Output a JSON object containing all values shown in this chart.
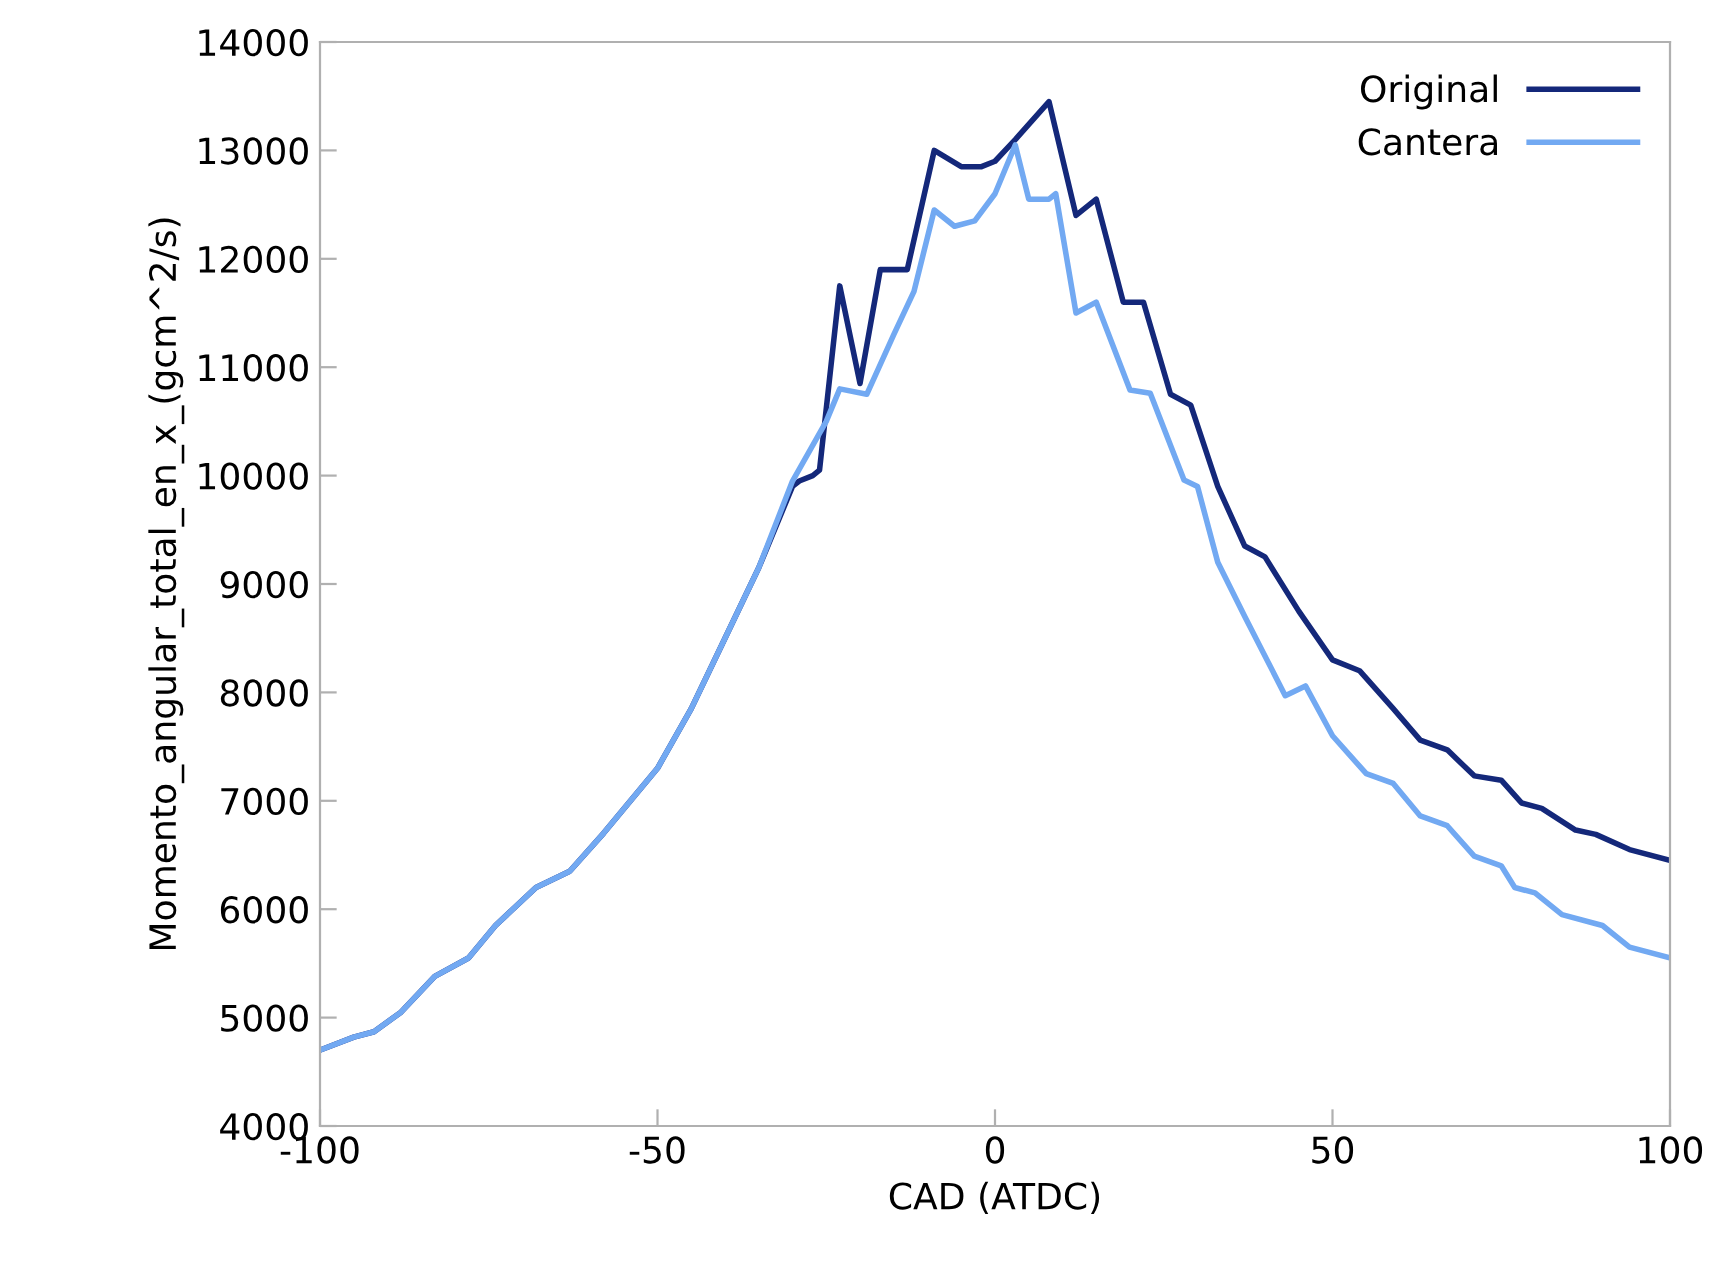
{
  "chart_data": {
    "type": "line",
    "xlabel": "CAD (ATDC)",
    "ylabel": "Momento_angular_total_en_x_(gcm^2/s)",
    "xlim": [
      -100,
      100
    ],
    "xticks": [
      -100,
      -50,
      0,
      50,
      100
    ],
    "ylim": [
      4000,
      14000
    ],
    "yticks": [
      4000,
      5000,
      6000,
      7000,
      8000,
      9000,
      10000,
      11000,
      12000,
      13000,
      14000
    ],
    "grid": false,
    "legend": "top right",
    "marker": "none",
    "line_style": "solid",
    "series": [
      {
        "name": "Original",
        "color": "#14287a",
        "x": [
          -100,
          -95,
          -92,
          -88,
          -83,
          -78,
          -74,
          -68,
          -63,
          -58,
          -50,
          -45,
          -40,
          -35,
          -30,
          -29,
          -27,
          -26,
          -23,
          -20,
          -17,
          -13,
          -9,
          -5,
          -2,
          0,
          3,
          8,
          12,
          15,
          19,
          22,
          26,
          29,
          33,
          37,
          40,
          45,
          50,
          54,
          59,
          63,
          67,
          71,
          75,
          78,
          81,
          86,
          89,
          94,
          100
        ],
        "values": [
          4700,
          4820,
          4870,
          5050,
          5380,
          5550,
          5850,
          6200,
          6350,
          6700,
          7300,
          7850,
          8500,
          9150,
          9900,
          9950,
          10000,
          10050,
          11750,
          10850,
          11900,
          11900,
          13000,
          12850,
          12850,
          12900,
          13100,
          13450,
          12400,
          12550,
          11600,
          11600,
          10750,
          10650,
          9900,
          9350,
          9250,
          8750,
          8300,
          8200,
          7850,
          7560,
          7470,
          7230,
          7190,
          6980,
          6930,
          6730,
          6690,
          6550,
          6450
        ]
      },
      {
        "name": "Cantera",
        "color": "#72a9f2",
        "x": [
          -100,
          -95,
          -92,
          -88,
          -83,
          -78,
          -74,
          -68,
          -63,
          -58,
          -50,
          -45,
          -40,
          -35,
          -30,
          -25,
          -23,
          -19,
          -15,
          -12,
          -9,
          -6,
          -3,
          0,
          3,
          5,
          8,
          9,
          12,
          15,
          20,
          23,
          28,
          30,
          33,
          37,
          43,
          46,
          50,
          55,
          59,
          63,
          67,
          71,
          75,
          77,
          80,
          84,
          90,
          94,
          100
        ],
        "values": [
          4700,
          4820,
          4870,
          5050,
          5380,
          5550,
          5850,
          6200,
          6350,
          6700,
          7300,
          7850,
          8500,
          9150,
          9950,
          10500,
          10800,
          10750,
          11300,
          11700,
          12450,
          12300,
          12350,
          12600,
          13050,
          12550,
          12550,
          12600,
          11500,
          11600,
          10790,
          10760,
          9960,
          9900,
          9200,
          8700,
          7970,
          8060,
          7600,
          7250,
          7160,
          6860,
          6770,
          6490,
          6400,
          6200,
          6150,
          5950,
          5850,
          5650,
          5550
        ]
      }
    ]
  }
}
